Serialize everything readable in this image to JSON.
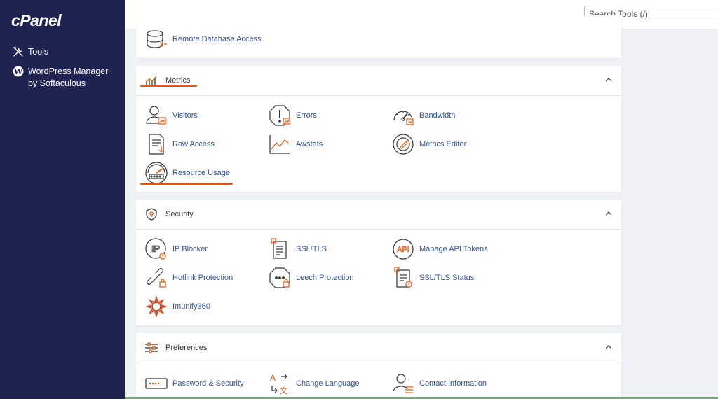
{
  "brand": {
    "logo_text": "cPanel"
  },
  "sidebar": {
    "items": [
      {
        "label": "Tools",
        "icon": "tools-icon"
      },
      {
        "label": "WordPress Manager",
        "label2": "by Softaculous",
        "icon": "wordpress-icon"
      }
    ]
  },
  "search": {
    "placeholder": "Search Tools (/)",
    "value": ""
  },
  "sections": {
    "databases": {
      "items": [
        {
          "label": "Remote Database Access",
          "icon": "remote-database-icon"
        }
      ]
    },
    "metrics": {
      "title": "Metrics",
      "items": [
        {
          "label": "Visitors",
          "icon": "visitors-icon"
        },
        {
          "label": "Errors",
          "icon": "errors-icon"
        },
        {
          "label": "Bandwidth",
          "icon": "bandwidth-icon"
        },
        {
          "label": "Raw Access",
          "icon": "raw-access-icon"
        },
        {
          "label": "Awstats",
          "icon": "awstats-icon"
        },
        {
          "label": "Metrics Editor",
          "icon": "metrics-editor-icon"
        },
        {
          "label": "Resource Usage",
          "icon": "resource-usage-icon"
        }
      ]
    },
    "security": {
      "title": "Security",
      "items": [
        {
          "label": "IP Blocker",
          "icon": "ip-blocker-icon"
        },
        {
          "label": "SSL/TLS",
          "icon": "ssl-tls-icon"
        },
        {
          "label": "Manage API Tokens",
          "icon": "api-tokens-icon"
        },
        {
          "label": "Hotlink Protection",
          "icon": "hotlink-protection-icon"
        },
        {
          "label": "Leech Protection",
          "icon": "leech-protection-icon"
        },
        {
          "label": "SSL/TLS Status",
          "icon": "ssl-tls-status-icon"
        },
        {
          "label": "Imunify360",
          "icon": "imunify360-icon"
        }
      ]
    },
    "preferences": {
      "title": "Preferences",
      "items": [
        {
          "label": "Password & Security",
          "icon": "password-security-icon"
        },
        {
          "label": "Change Language",
          "icon": "change-language-icon"
        },
        {
          "label": "Contact Information",
          "icon": "contact-information-icon"
        }
      ]
    }
  },
  "colors": {
    "sidebar_bg": "#1f2352",
    "link": "#315399",
    "accent": "#e8560e",
    "icon_stroke": "#333333"
  }
}
